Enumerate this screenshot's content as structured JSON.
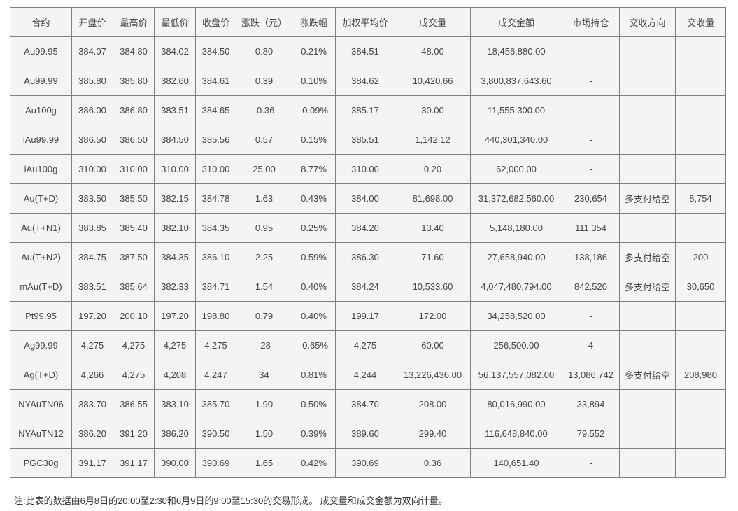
{
  "colors": {
    "cell_background": "#f4f4f4",
    "border": "#7f7f7f",
    "text": "#444444"
  },
  "table": {
    "columns": [
      "合约",
      "开盘价",
      "最高价",
      "最低价",
      "收盘价",
      "涨跌（元）",
      "涨跌幅",
      "加权平均价",
      "成交量",
      "成交金额",
      "市场持仓",
      "交收方向",
      "交收量"
    ],
    "rows": [
      [
        "Au99.95",
        "384.07",
        "384.80",
        "384.02",
        "384.50",
        "0.80",
        "0.21%",
        "384.51",
        "48.00",
        "18,456,880.00",
        "-",
        "",
        ""
      ],
      [
        "Au99.99",
        "385.80",
        "385.80",
        "382.60",
        "384.61",
        "0.39",
        "0.10%",
        "384.62",
        "10,420.66",
        "3,800,837,643.60",
        "-",
        "",
        ""
      ],
      [
        "Au100g",
        "386.00",
        "386.80",
        "383.51",
        "384.65",
        "-0.36",
        "-0.09%",
        "385.17",
        "30.00",
        "11,555,300.00",
        "-",
        "",
        ""
      ],
      [
        "iAu99.99",
        "386.50",
        "386.50",
        "384.50",
        "385.56",
        "0.57",
        "0.15%",
        "385.51",
        "1,142.12",
        "440,301,340.00",
        "-",
        "",
        ""
      ],
      [
        "iAu100g",
        "310.00",
        "310.00",
        "310.00",
        "310.00",
        "25.00",
        "8.77%",
        "310.00",
        "0.20",
        "62,000.00",
        "-",
        "",
        ""
      ],
      [
        "Au(T+D)",
        "383.50",
        "385.50",
        "382.15",
        "384.78",
        "1.63",
        "0.43%",
        "384.00",
        "81,698.00",
        "31,372,682,560.00",
        "230,654",
        "多支付给空",
        "8,754"
      ],
      [
        "Au(T+N1)",
        "383.85",
        "385.40",
        "382.10",
        "384.35",
        "0.95",
        "0.25%",
        "384.20",
        "13.40",
        "5,148,180.00",
        "111,354",
        "",
        ""
      ],
      [
        "Au(T+N2)",
        "384.75",
        "387.50",
        "384.35",
        "386.10",
        "2.25",
        "0.59%",
        "386.30",
        "71.60",
        "27,658,940.00",
        "138,186",
        "多支付给空",
        "200"
      ],
      [
        "mAu(T+D)",
        "383.51",
        "385.64",
        "382.33",
        "384.71",
        "1.54",
        "0.40%",
        "384.24",
        "10,533.60",
        "4,047,480,794.00",
        "842,520",
        "多支付给空",
        "30,650"
      ],
      [
        "Pt99.95",
        "197.20",
        "200.10",
        "197.20",
        "198.80",
        "0.79",
        "0.40%",
        "199.17",
        "172.00",
        "34,258,520.00",
        "-",
        "",
        ""
      ],
      [
        "Ag99.99",
        "4,275",
        "4,275",
        "4,275",
        "4,275",
        "-28",
        "-0.65%",
        "4,275",
        "60.00",
        "256,500.00",
        "4",
        "",
        ""
      ],
      [
        "Ag(T+D)",
        "4,266",
        "4,275",
        "4,208",
        "4,247",
        "34",
        "0.81%",
        "4,244",
        "13,226,436.00",
        "56,137,557,082.00",
        "13,086,742",
        "多支付给空",
        "208,980"
      ],
      [
        "NYAuTN06",
        "383.70",
        "386.55",
        "383.10",
        "385.70",
        "1.90",
        "0.50%",
        "384.70",
        "208.00",
        "80,016,990.00",
        "33,894",
        "",
        ""
      ],
      [
        "NYAuTN12",
        "386.20",
        "391.20",
        "386.20",
        "390.50",
        "1.50",
        "0.39%",
        "389.60",
        "299.40",
        "116,648,840.00",
        "79,552",
        "",
        ""
      ],
      [
        "PGC30g",
        "391.17",
        "391.17",
        "390.00",
        "390.69",
        "1.65",
        "0.42%",
        "390.69",
        "0.36",
        "140,651.40",
        "-",
        "",
        ""
      ]
    ]
  },
  "footnote": "注:此表的数据由6月8日的20:00至2:30和6月9日的9:00至15:30的交易形成。 成交量和成交金额为双向计量。"
}
